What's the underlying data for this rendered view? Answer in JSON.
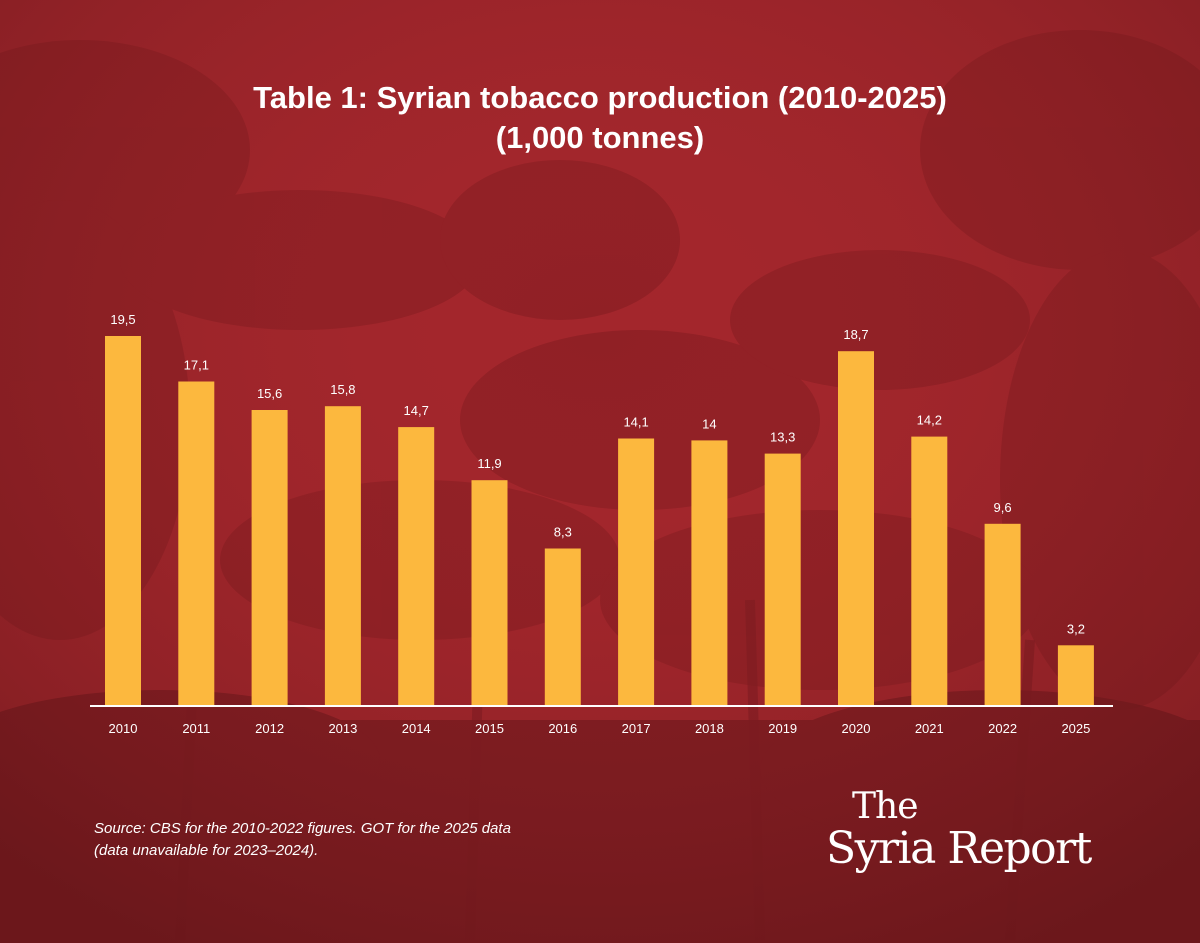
{
  "title_lines": [
    "Table 1: Syrian tobacco production (2010-2025)",
    "(1,000 tonnes)"
  ],
  "source_lines": [
    "Source: CBS for the 2010-2022 figures. GOT for the 2025 data",
    "(data unavailable for 2023–2024)."
  ],
  "logo": {
    "line1": "The",
    "line2": "Syria Report"
  },
  "colors": {
    "background": "#a3262c",
    "bar": "#fcb83e",
    "text": "#ffffff",
    "axis": "#ffffff"
  },
  "chart_data": {
    "type": "bar",
    "title": "Table 1: Syrian tobacco production (2010-2025) (1,000 tonnes)",
    "xlabel": "",
    "ylabel": "",
    "categories": [
      "2010",
      "2011",
      "2012",
      "2013",
      "2014",
      "2015",
      "2016",
      "2017",
      "2018",
      "2019",
      "2020",
      "2021",
      "2022",
      "2025"
    ],
    "values": [
      19.5,
      17.1,
      15.6,
      15.8,
      14.7,
      11.9,
      8.3,
      14.1,
      14,
      13.3,
      18.7,
      14.2,
      9.6,
      3.2
    ],
    "data_labels": [
      "19,5",
      "17,1",
      "15,6",
      "15,8",
      "14,7",
      "11,9",
      "8,3",
      "14,1",
      "14",
      "13,3",
      "18,7",
      "14,2",
      "9,6",
      "3,2"
    ],
    "ylim": [
      0,
      19.5
    ],
    "grid": false,
    "legend": "none"
  }
}
